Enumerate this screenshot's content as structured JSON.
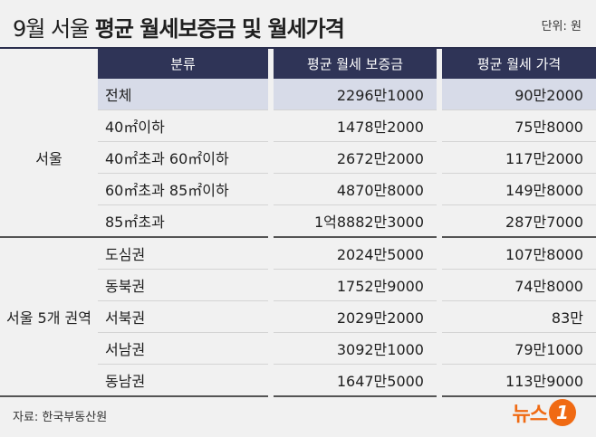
{
  "title": {
    "prefix": "9월 서울 ",
    "main": "평균 월세보증금 및 월세가격"
  },
  "unit": "단위: 원",
  "header": {
    "category": "분류",
    "deposit": "평균 월세 보증금",
    "rent": "평균 월세 가격"
  },
  "groups": [
    {
      "name": "서울",
      "rows": [
        {
          "category": "전체",
          "deposit": "2296만1000",
          "rent": "90만2000"
        },
        {
          "category": "40㎡이하",
          "deposit": "1478만2000",
          "rent": "75만8000"
        },
        {
          "category": "40㎡초과 60㎡이하",
          "deposit": "2672만2000",
          "rent": "117만2000"
        },
        {
          "category": "60㎡초과 85㎡이하",
          "deposit": "4870만8000",
          "rent": "149만8000"
        },
        {
          "category": "85㎡초과",
          "deposit": "1억8882만3000",
          "rent": "287만7000"
        }
      ]
    },
    {
      "name": "서울 5개 권역",
      "rows": [
        {
          "category": "도심권",
          "deposit": "2024만5000",
          "rent": "107만8000"
        },
        {
          "category": "동북권",
          "deposit": "1752만9000",
          "rent": "74만8000"
        },
        {
          "category": "서북권",
          "deposit": "2029만2000",
          "rent": "83만"
        },
        {
          "category": "서남권",
          "deposit": "3092만1000",
          "rent": "79만1000"
        },
        {
          "category": "동남권",
          "deposit": "1647만5000",
          "rent": "113만9000"
        }
      ]
    }
  ],
  "source": "자료: 한국부동산원",
  "logo": {
    "text": "뉴스",
    "mark": "1"
  },
  "colors": {
    "header_bg": "#2f3457",
    "highlight": "#d7dbe8",
    "brand": "#f06a13",
    "background": "#f1f1f1"
  }
}
